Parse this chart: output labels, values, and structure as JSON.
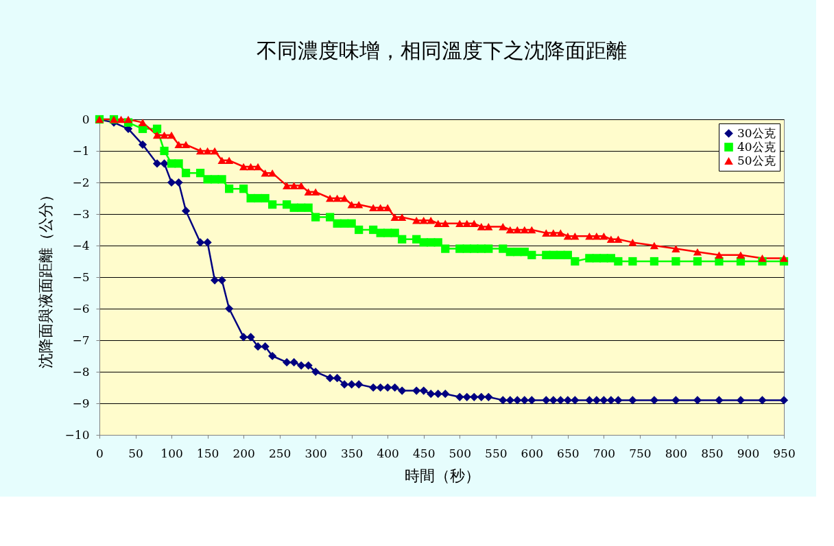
{
  "chart_data": {
    "type": "line",
    "title": "不同濃度味增，相同溫度下之沈降面距離",
    "xlabel": "時間（秒）",
    "ylabel": "沈降面與液面距離（公分）",
    "xlim": [
      0,
      950
    ],
    "xticks": [
      0,
      50,
      100,
      150,
      200,
      250,
      300,
      350,
      400,
      450,
      500,
      550,
      600,
      650,
      700,
      750,
      800,
      850,
      900,
      950
    ],
    "ylim": [
      -10,
      0
    ],
    "yticks": [
      0,
      -1,
      -2,
      -3,
      -4,
      -5,
      -6,
      -7,
      -8,
      -9,
      -10
    ],
    "grid": "y",
    "legend": "top right",
    "line_style": "solid",
    "series": [
      {
        "name": "30公克",
        "color": "#000080",
        "marker": "diamond",
        "x": [
          0,
          20,
          40,
          60,
          80,
          90,
          100,
          110,
          120,
          140,
          150,
          160,
          170,
          180,
          200,
          210,
          220,
          230,
          240,
          260,
          270,
          280,
          290,
          300,
          320,
          330,
          340,
          350,
          360,
          380,
          390,
          400,
          410,
          420,
          440,
          450,
          460,
          470,
          480,
          500,
          510,
          520,
          530,
          540,
          560,
          570,
          580,
          590,
          600,
          620,
          630,
          640,
          650,
          660,
          680,
          690,
          700,
          710,
          720,
          740,
          770,
          800,
          830,
          860,
          890,
          920,
          950
        ],
        "values": [
          0,
          -0.1,
          -0.3,
          -0.8,
          -1.4,
          -1.4,
          -2.0,
          -2.0,
          -2.9,
          -3.9,
          -3.9,
          -5.1,
          -5.1,
          -6.0,
          -6.9,
          -6.9,
          -7.2,
          -7.2,
          -7.5,
          -7.7,
          -7.7,
          -7.8,
          -7.8,
          -8.0,
          -8.2,
          -8.2,
          -8.4,
          -8.4,
          -8.4,
          -8.5,
          -8.5,
          -8.5,
          -8.5,
          -8.6,
          -8.6,
          -8.6,
          -8.7,
          -8.7,
          -8.7,
          -8.8,
          -8.8,
          -8.8,
          -8.8,
          -8.8,
          -8.9,
          -8.9,
          -8.9,
          -8.9,
          -8.9,
          -8.9,
          -8.9,
          -8.9,
          -8.9,
          -8.9,
          -8.9,
          -8.9,
          -8.9,
          -8.9,
          -8.9,
          -8.9,
          -8.9,
          -8.9,
          -8.9,
          -8.9,
          -8.9,
          -8.9,
          -8.9
        ]
      },
      {
        "name": "40公克",
        "color": "#00ff00",
        "marker": "square",
        "x": [
          0,
          20,
          40,
          60,
          80,
          90,
          100,
          110,
          120,
          140,
          150,
          160,
          170,
          180,
          200,
          210,
          220,
          230,
          240,
          260,
          270,
          280,
          290,
          300,
          320,
          330,
          340,
          350,
          360,
          380,
          390,
          400,
          410,
          420,
          440,
          450,
          460,
          470,
          480,
          500,
          510,
          520,
          530,
          540,
          560,
          570,
          580,
          590,
          600,
          620,
          630,
          640,
          650,
          660,
          680,
          690,
          700,
          710,
          720,
          740,
          770,
          800,
          830,
          860,
          890,
          920,
          950
        ],
        "values": [
          0,
          0,
          -0.1,
          -0.3,
          -0.3,
          -1.0,
          -1.4,
          -1.4,
          -1.7,
          -1.7,
          -1.9,
          -1.9,
          -1.9,
          -2.2,
          -2.2,
          -2.5,
          -2.5,
          -2.5,
          -2.7,
          -2.7,
          -2.8,
          -2.8,
          -2.8,
          -3.1,
          -3.1,
          -3.3,
          -3.3,
          -3.3,
          -3.5,
          -3.5,
          -3.6,
          -3.6,
          -3.6,
          -3.8,
          -3.8,
          -3.9,
          -3.9,
          -3.9,
          -4.1,
          -4.1,
          -4.1,
          -4.1,
          -4.1,
          -4.1,
          -4.1,
          -4.2,
          -4.2,
          -4.2,
          -4.3,
          -4.3,
          -4.3,
          -4.3,
          -4.3,
          -4.5,
          -4.4,
          -4.4,
          -4.4,
          -4.4,
          -4.5,
          -4.5,
          -4.5,
          -4.5,
          -4.5,
          -4.5,
          -4.5,
          -4.5,
          -4.5
        ]
      },
      {
        "name": "50公克",
        "color": "#ff0000",
        "marker": "triangle",
        "x": [
          0,
          20,
          30,
          40,
          60,
          80,
          90,
          100,
          110,
          120,
          140,
          150,
          160,
          170,
          180,
          200,
          210,
          220,
          230,
          240,
          260,
          270,
          280,
          290,
          300,
          320,
          330,
          340,
          350,
          360,
          380,
          390,
          400,
          410,
          420,
          440,
          450,
          460,
          470,
          480,
          500,
          510,
          520,
          530,
          540,
          560,
          570,
          580,
          590,
          600,
          620,
          630,
          640,
          650,
          660,
          680,
          690,
          700,
          710,
          720,
          740,
          770,
          800,
          830,
          860,
          890,
          920,
          950
        ],
        "values": [
          0,
          0,
          0,
          0,
          -0.1,
          -0.5,
          -0.5,
          -0.5,
          -0.8,
          -0.8,
          -1.0,
          -1.0,
          -1.0,
          -1.3,
          -1.3,
          -1.5,
          -1.5,
          -1.5,
          -1.7,
          -1.7,
          -2.1,
          -2.1,
          -2.1,
          -2.3,
          -2.3,
          -2.5,
          -2.5,
          -2.5,
          -2.7,
          -2.7,
          -2.8,
          -2.8,
          -2.8,
          -3.1,
          -3.1,
          -3.2,
          -3.2,
          -3.2,
          -3.3,
          -3.3,
          -3.3,
          -3.3,
          -3.3,
          -3.4,
          -3.4,
          -3.4,
          -3.5,
          -3.5,
          -3.5,
          -3.5,
          -3.6,
          -3.6,
          -3.6,
          -3.7,
          -3.7,
          -3.7,
          -3.7,
          -3.7,
          -3.8,
          -3.8,
          -3.9,
          -4.0,
          -4.1,
          -4.2,
          -4.3,
          -4.3,
          -4.4,
          -4.4
        ]
      }
    ]
  }
}
